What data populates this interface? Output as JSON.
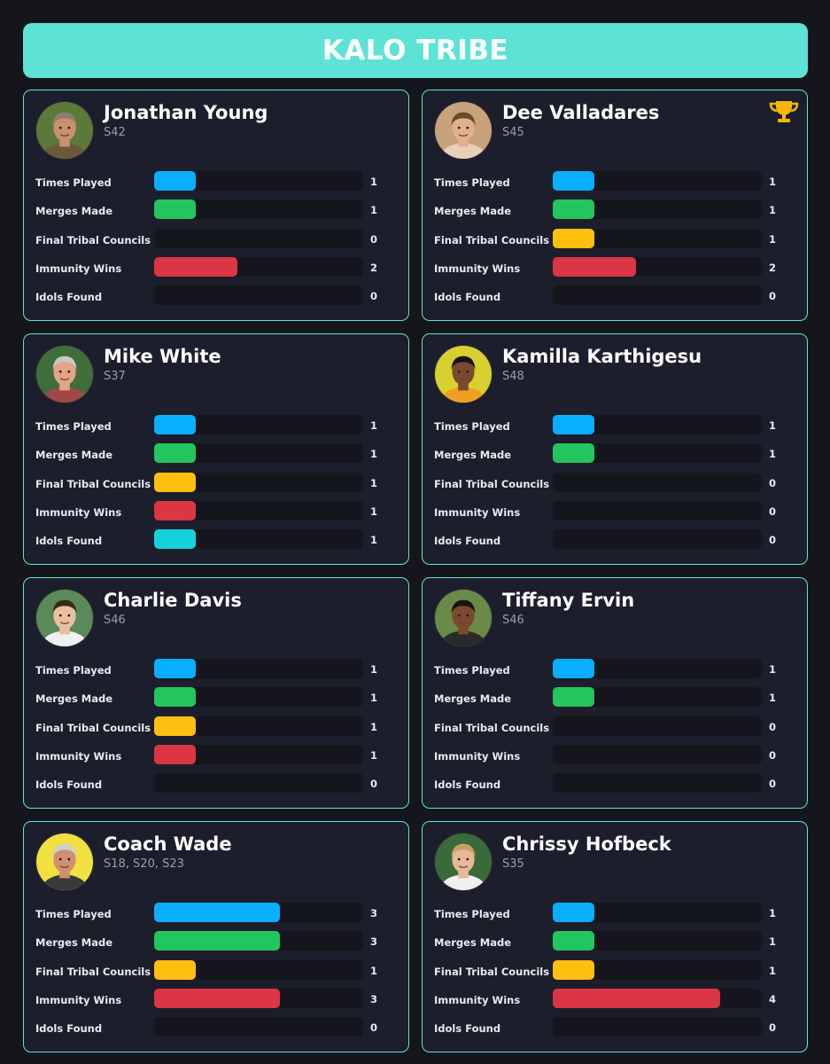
{
  "header": {
    "title": "KALO TRIBE"
  },
  "stat_labels": [
    "Times Played",
    "Merges Made",
    "Final Tribal Councils",
    "Immunity Wins",
    "Idols Found"
  ],
  "stat_colors": [
    "#0aaeff",
    "#22c55e",
    "#fdc00f",
    "#dc3545",
    "#14d2dc"
  ],
  "stat_scale_max": 5,
  "players": [
    {
      "name": "Jonathan Young",
      "seasons": "S42",
      "winner": false,
      "avatar": "jonathan-young-avatar",
      "stats": [
        1,
        1,
        0,
        2,
        0
      ]
    },
    {
      "name": "Dee Valladares",
      "seasons": "S45",
      "winner": true,
      "trophy_icon": "trophy-icon",
      "avatar": "dee-valladares-avatar",
      "stats": [
        1,
        1,
        1,
        2,
        0
      ]
    },
    {
      "name": "Mike White",
      "seasons": "S37",
      "winner": false,
      "avatar": "mike-white-avatar",
      "stats": [
        1,
        1,
        1,
        1,
        1
      ]
    },
    {
      "name": "Kamilla Karthigesu",
      "seasons": "S48",
      "winner": false,
      "avatar": "kamilla-karthigesu-avatar",
      "stats": [
        1,
        1,
        0,
        0,
        0
      ]
    },
    {
      "name": "Charlie Davis",
      "seasons": "S46",
      "winner": false,
      "avatar": "charlie-davis-avatar",
      "stats": [
        1,
        1,
        1,
        1,
        0
      ]
    },
    {
      "name": "Tiffany Ervin",
      "seasons": "S46",
      "winner": false,
      "avatar": "tiffany-ervin-avatar",
      "stats": [
        1,
        1,
        0,
        0,
        0
      ]
    },
    {
      "name": "Coach Wade",
      "seasons": "S18, S20, S23",
      "winner": false,
      "avatar": "coach-wade-avatar",
      "stats": [
        3,
        3,
        1,
        3,
        0
      ]
    },
    {
      "name": "Chrissy Hofbeck",
      "seasons": "S35",
      "winner": false,
      "avatar": "chrissy-hofbeck-avatar",
      "stats": [
        1,
        1,
        1,
        4,
        0
      ]
    }
  ]
}
